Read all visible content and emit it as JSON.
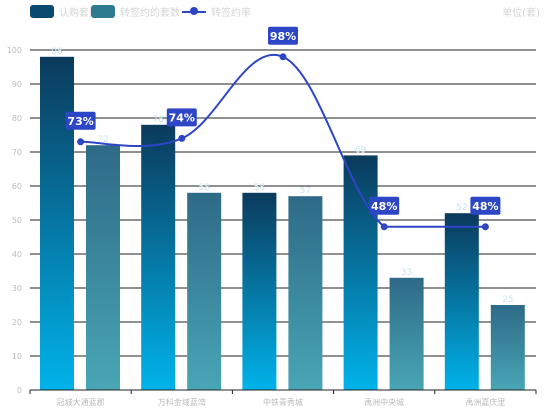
{
  "legend": {
    "bar1": "认购套数",
    "bar2": "转签约的套数",
    "line": "转签约率"
  },
  "unit": "单位(套)",
  "colors": {
    "bar1_top": "#0b3a5c",
    "bar1_bottom": "#00b3ea",
    "bar2_top": "#2e6a87",
    "bar2_bottom": "#48a6b5",
    "line": "#2d46c6",
    "grid": "#222222",
    "axis_text": "#bbbbbb",
    "bar_label": "#c7e3f0"
  },
  "chart_data": {
    "type": "bar",
    "categories": [
      "冠城大通蓝郡",
      "万科金域蓝湾",
      "中铁青秀城",
      "禹洲中央城",
      "禹洲嘉庆里"
    ],
    "series": [
      {
        "name": "认购套数",
        "type": "bar",
        "values": [
          98,
          78,
          58,
          69,
          52
        ],
        "labels": [
          "98",
          "78",
          "58",
          "69",
          "52"
        ]
      },
      {
        "name": "转签约的套数",
        "type": "bar",
        "values": [
          72,
          58,
          57,
          33,
          25
        ],
        "labels": [
          "72",
          "58",
          "57",
          "33",
          "25"
        ]
      },
      {
        "name": "转签约率",
        "type": "line",
        "values": [
          73,
          74,
          98,
          48,
          48
        ],
        "labels": [
          "73%",
          "74%",
          "98%",
          "48%",
          "48%"
        ]
      }
    ],
    "ylim": [
      0,
      100
    ],
    "yticks": [
      "0",
      "10",
      "20",
      "30",
      "40",
      "50",
      "60",
      "70",
      "80",
      "90",
      "100"
    ],
    "grid": true,
    "legend_position": "top-left"
  }
}
